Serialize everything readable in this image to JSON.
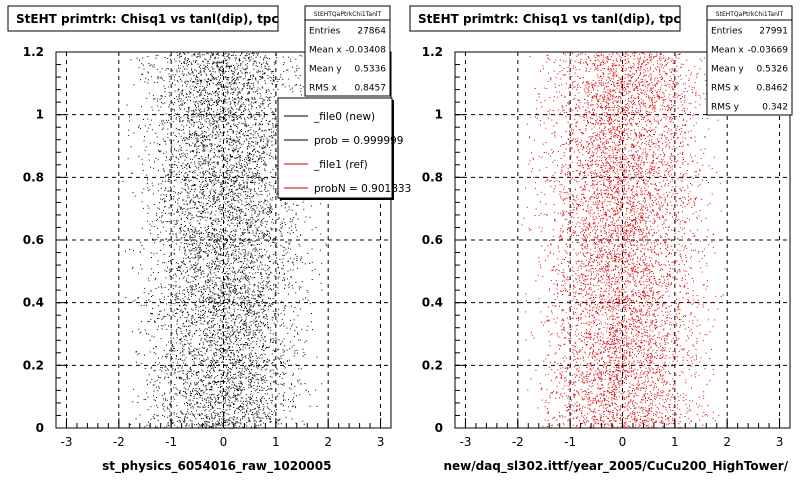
{
  "chart_data": [
    {
      "type": "scatter",
      "title": "StEHT primtrk: Chisq1 vs tanl(dip), tpc",
      "xlabel": "st_physics_6054016_raw_1020005",
      "ylabel": "",
      "xlim": [
        -3.2,
        3.2
      ],
      "ylim": [
        0,
        1.2
      ],
      "x_ticks": [
        "-3",
        "-2",
        "-1",
        "0",
        "1",
        "2",
        "3"
      ],
      "y_ticks": [
        "0",
        "0.2",
        "0.4",
        "0.6",
        "0.8",
        "1",
        "1.2"
      ],
      "grid": true,
      "point_color": "#000000",
      "distribution": {
        "x_range": [
          -2.1,
          2.1
        ],
        "y_range": [
          0,
          1.2
        ],
        "entries": 27864
      },
      "stats": {
        "name": "StEHTQaPtrkChi1TanlT",
        "rows": [
          {
            "label": "Entries",
            "value": "27864"
          },
          {
            "label": "Mean x",
            "value": "-0.03408"
          },
          {
            "label": "Mean y",
            "value": "0.5336"
          },
          {
            "label": "RMS x",
            "value": "0.8457"
          }
        ]
      },
      "legend": {
        "position": "top-right",
        "entries": [
          {
            "label": "_file0 (new)",
            "color": "#000000"
          },
          {
            "label": "prob = 0.999999",
            "color": "#000000"
          },
          {
            "label": "_file1 (ref)",
            "color": "#cc0000"
          },
          {
            "label": "probN = 0.901833",
            "color": "#cc0000"
          }
        ]
      }
    },
    {
      "type": "scatter",
      "title": "StEHT primtrk: Chisq1 vs tanl(dip), tpc",
      "xlabel": "new/daq_sl302.ittf/year_2005/CuCu200_HighTower/",
      "ylabel": "",
      "xlim": [
        -3.2,
        3.2
      ],
      "ylim": [
        0,
        1.2
      ],
      "x_ticks": [
        "-3",
        "-2",
        "-1",
        "0",
        "1",
        "2",
        "3"
      ],
      "y_ticks": [
        "0",
        "0.2",
        "0.4",
        "0.6",
        "0.8",
        "1",
        "1.2"
      ],
      "grid": true,
      "point_color": "#dd0000",
      "distribution": {
        "x_range": [
          -2.1,
          2.1
        ],
        "y_range": [
          0,
          1.2
        ],
        "entries": 27991
      },
      "stats": {
        "name": "StEHTQaPtrkChi1TanlT",
        "rows": [
          {
            "label": "Entries",
            "value": "27991"
          },
          {
            "label": "Mean x",
            "value": "-0.03669"
          },
          {
            "label": "Mean y",
            "value": "0.5326"
          },
          {
            "label": "RMS x",
            "value": "0.8462"
          },
          {
            "label": "RMS y",
            "value": "0.342"
          }
        ]
      }
    }
  ]
}
